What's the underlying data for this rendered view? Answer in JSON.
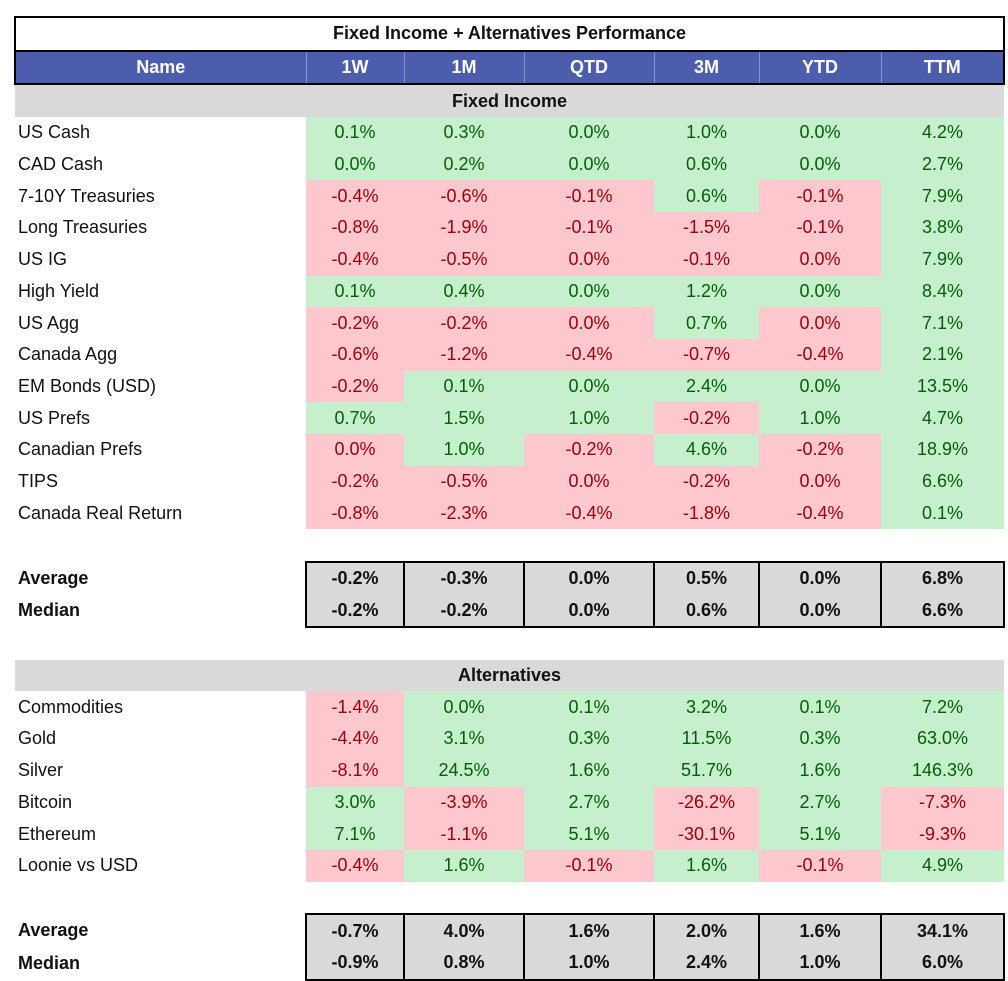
{
  "title": "Fixed Income + Alternatives Performance",
  "headers": [
    "Name",
    "1W",
    "1M",
    "QTD",
    "3M",
    "YTD",
    "TTM"
  ],
  "colors": {
    "header_bg": "#4d5dae",
    "positive_bg": "#c6efce",
    "positive_text": "#006100",
    "negative_bg": "#ffc7ce",
    "negative_text": "#9c0006",
    "section_bg": "#d9d9d9"
  },
  "sections": [
    {
      "title": "Fixed Income",
      "rows": [
        {
          "name": "US Cash",
          "values": [
            "0.1%",
            "0.3%",
            "0.0%",
            "1.0%",
            "0.0%",
            "4.2%"
          ],
          "signs": [
            "pos",
            "pos",
            "pos",
            "pos",
            "pos",
            "pos"
          ]
        },
        {
          "name": "CAD Cash",
          "values": [
            "0.0%",
            "0.2%",
            "0.0%",
            "0.6%",
            "0.0%",
            "2.7%"
          ],
          "signs": [
            "pos",
            "pos",
            "pos",
            "pos",
            "pos",
            "pos"
          ]
        },
        {
          "name": "7-10Y Treasuries",
          "values": [
            "-0.4%",
            "-0.6%",
            "-0.1%",
            "0.6%",
            "-0.1%",
            "7.9%"
          ],
          "signs": [
            "neg",
            "neg",
            "neg",
            "pos",
            "neg",
            "pos"
          ]
        },
        {
          "name": "Long Treasuries",
          "values": [
            "-0.8%",
            "-1.9%",
            "-0.1%",
            "-1.5%",
            "-0.1%",
            "3.8%"
          ],
          "signs": [
            "neg",
            "neg",
            "neg",
            "neg",
            "neg",
            "pos"
          ]
        },
        {
          "name": "US IG",
          "values": [
            "-0.4%",
            "-0.5%",
            "0.0%",
            "-0.1%",
            "0.0%",
            "7.9%"
          ],
          "signs": [
            "neg",
            "neg",
            "neg",
            "neg",
            "neg",
            "pos"
          ]
        },
        {
          "name": "High Yield",
          "values": [
            "0.1%",
            "0.4%",
            "0.0%",
            "1.2%",
            "0.0%",
            "8.4%"
          ],
          "signs": [
            "pos",
            "pos",
            "pos",
            "pos",
            "pos",
            "pos"
          ]
        },
        {
          "name": "US Agg",
          "values": [
            "-0.2%",
            "-0.2%",
            "0.0%",
            "0.7%",
            "0.0%",
            "7.1%"
          ],
          "signs": [
            "neg",
            "neg",
            "neg",
            "pos",
            "neg",
            "pos"
          ]
        },
        {
          "name": "Canada Agg",
          "values": [
            "-0.6%",
            "-1.2%",
            "-0.4%",
            "-0.7%",
            "-0.4%",
            "2.1%"
          ],
          "signs": [
            "neg",
            "neg",
            "neg",
            "neg",
            "neg",
            "pos"
          ]
        },
        {
          "name": "EM Bonds (USD)",
          "values": [
            "-0.2%",
            "0.1%",
            "0.0%",
            "2.4%",
            "0.0%",
            "13.5%"
          ],
          "signs": [
            "neg",
            "pos",
            "pos",
            "pos",
            "pos",
            "pos"
          ]
        },
        {
          "name": "US Prefs",
          "values": [
            "0.7%",
            "1.5%",
            "1.0%",
            "-0.2%",
            "1.0%",
            "4.7%"
          ],
          "signs": [
            "pos",
            "pos",
            "pos",
            "neg",
            "pos",
            "pos"
          ]
        },
        {
          "name": "Canadian Prefs",
          "values": [
            "0.0%",
            "1.0%",
            "-0.2%",
            "4.6%",
            "-0.2%",
            "18.9%"
          ],
          "signs": [
            "neg",
            "pos",
            "neg",
            "pos",
            "neg",
            "pos"
          ]
        },
        {
          "name": "TIPS",
          "values": [
            "-0.2%",
            "-0.5%",
            "0.0%",
            "-0.2%",
            "0.0%",
            "6.6%"
          ],
          "signs": [
            "neg",
            "neg",
            "neg",
            "neg",
            "neg",
            "pos"
          ]
        },
        {
          "name": "Canada Real Return",
          "values": [
            "-0.8%",
            "-2.3%",
            "-0.4%",
            "-1.8%",
            "-0.4%",
            "0.1%"
          ],
          "signs": [
            "neg",
            "neg",
            "neg",
            "neg",
            "neg",
            "pos"
          ]
        }
      ],
      "summary": [
        {
          "label": "Average",
          "values": [
            "-0.2%",
            "-0.3%",
            "0.0%",
            "0.5%",
            "0.0%",
            "6.8%"
          ]
        },
        {
          "label": "Median",
          "values": [
            "-0.2%",
            "-0.2%",
            "0.0%",
            "0.6%",
            "0.0%",
            "6.6%"
          ]
        }
      ]
    },
    {
      "title": "Alternatives",
      "rows": [
        {
          "name": "Commodities",
          "values": [
            "-1.4%",
            "0.0%",
            "0.1%",
            "3.2%",
            "0.1%",
            "7.2%"
          ],
          "signs": [
            "neg",
            "pos",
            "pos",
            "pos",
            "pos",
            "pos"
          ]
        },
        {
          "name": "Gold",
          "values": [
            "-4.4%",
            "3.1%",
            "0.3%",
            "11.5%",
            "0.3%",
            "63.0%"
          ],
          "signs": [
            "neg",
            "pos",
            "pos",
            "pos",
            "pos",
            "pos"
          ]
        },
        {
          "name": "Silver",
          "values": [
            "-8.1%",
            "24.5%",
            "1.6%",
            "51.7%",
            "1.6%",
            "146.3%"
          ],
          "signs": [
            "neg",
            "pos",
            "pos",
            "pos",
            "pos",
            "pos"
          ]
        },
        {
          "name": "Bitcoin",
          "values": [
            "3.0%",
            "-3.9%",
            "2.7%",
            "-26.2%",
            "2.7%",
            "-7.3%"
          ],
          "signs": [
            "pos",
            "neg",
            "pos",
            "neg",
            "pos",
            "neg"
          ]
        },
        {
          "name": "Ethereum",
          "values": [
            "7.1%",
            "-1.1%",
            "5.1%",
            "-30.1%",
            "5.1%",
            "-9.3%"
          ],
          "signs": [
            "pos",
            "neg",
            "pos",
            "neg",
            "pos",
            "neg"
          ]
        },
        {
          "name": "Loonie vs USD",
          "values": [
            "-0.4%",
            "1.6%",
            "-0.1%",
            "1.6%",
            "-0.1%",
            "4.9%"
          ],
          "signs": [
            "neg",
            "pos",
            "neg",
            "pos",
            "neg",
            "pos"
          ]
        }
      ],
      "summary": [
        {
          "label": "Average",
          "values": [
            "-0.7%",
            "4.0%",
            "1.6%",
            "2.0%",
            "1.6%",
            "34.1%"
          ]
        },
        {
          "label": "Median",
          "values": [
            "-0.9%",
            "0.8%",
            "1.0%",
            "2.4%",
            "1.0%",
            "6.0%"
          ]
        }
      ]
    }
  ]
}
